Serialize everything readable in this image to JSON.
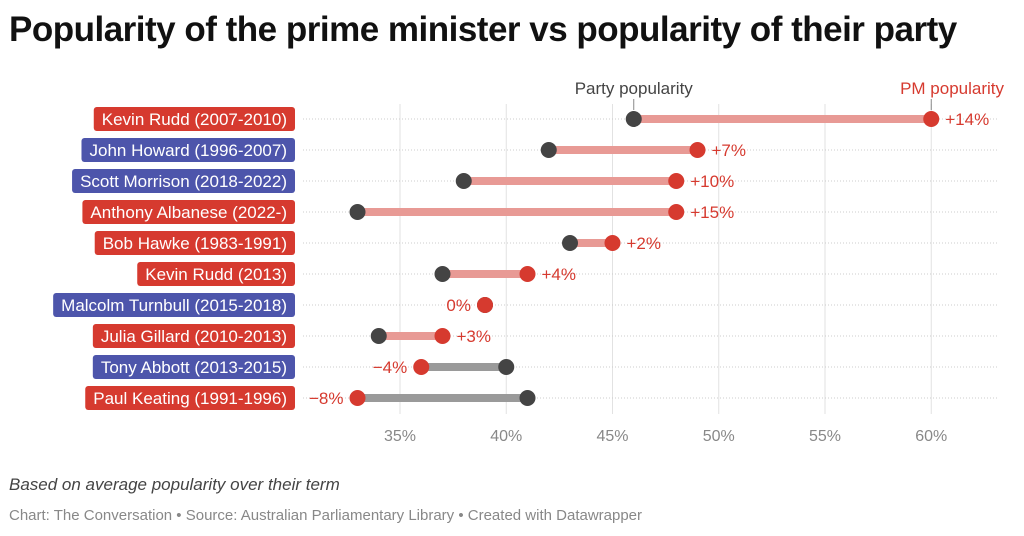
{
  "chart_data": {
    "type": "dumbbell",
    "title": "Popularity of the prime minister vs popularity of their party",
    "legend": {
      "party_label": "Party popularity",
      "pm_label": "PM popularity",
      "placement": "top"
    },
    "xlim": [
      30,
      64
    ],
    "x_ticks": [
      35,
      40,
      45,
      50,
      55,
      60
    ],
    "x_tick_labels": [
      "35%",
      "40%",
      "45%",
      "50%",
      "55%",
      "60%"
    ],
    "grid": true,
    "colors": {
      "labor": "#d63a2f",
      "liberal": "#4d55ab",
      "party_dot": "#444444",
      "positive_bar": "#e89a95",
      "negative_bar": "#9a9a9a",
      "diff_text": "#d63a2f"
    },
    "rows": [
      {
        "label": "Kevin Rudd (2007-2010)",
        "party": "labor",
        "party_pop": 46,
        "pm_pop": 60,
        "diff": "+14%"
      },
      {
        "label": "John Howard (1996-2007)",
        "party": "liberal",
        "party_pop": 42,
        "pm_pop": 49,
        "diff": "+7%"
      },
      {
        "label": "Scott Morrison (2018-2022)",
        "party": "liberal",
        "party_pop": 38,
        "pm_pop": 48,
        "diff": "+10%"
      },
      {
        "label": "Anthony Albanese (2022-)",
        "party": "labor",
        "party_pop": 33,
        "pm_pop": 48,
        "diff": "+15%"
      },
      {
        "label": "Bob Hawke (1983-1991)",
        "party": "labor",
        "party_pop": 43,
        "pm_pop": 45,
        "diff": "+2%"
      },
      {
        "label": "Kevin Rudd (2013)",
        "party": "labor",
        "party_pop": 37,
        "pm_pop": 41,
        "diff": "+4%"
      },
      {
        "label": "Malcolm Turnbull (2015-2018)",
        "party": "liberal",
        "party_pop": 39,
        "pm_pop": 39,
        "diff": "0%"
      },
      {
        "label": "Julia Gillard (2010-2013)",
        "party": "labor",
        "party_pop": 34,
        "pm_pop": 37,
        "diff": "+3%"
      },
      {
        "label": "Tony Abbott (2013-2015)",
        "party": "liberal",
        "party_pop": 40,
        "pm_pop": 36,
        "diff": "−4%"
      },
      {
        "label": "Paul Keating (1991-1996)",
        "party": "labor",
        "party_pop": 41,
        "pm_pop": 33,
        "diff": "−8%"
      }
    ],
    "note": "Based on average popularity over their term",
    "source": "Chart: The Conversation • Source: Australian Parliamentary Library • Created with Datawrapper"
  }
}
